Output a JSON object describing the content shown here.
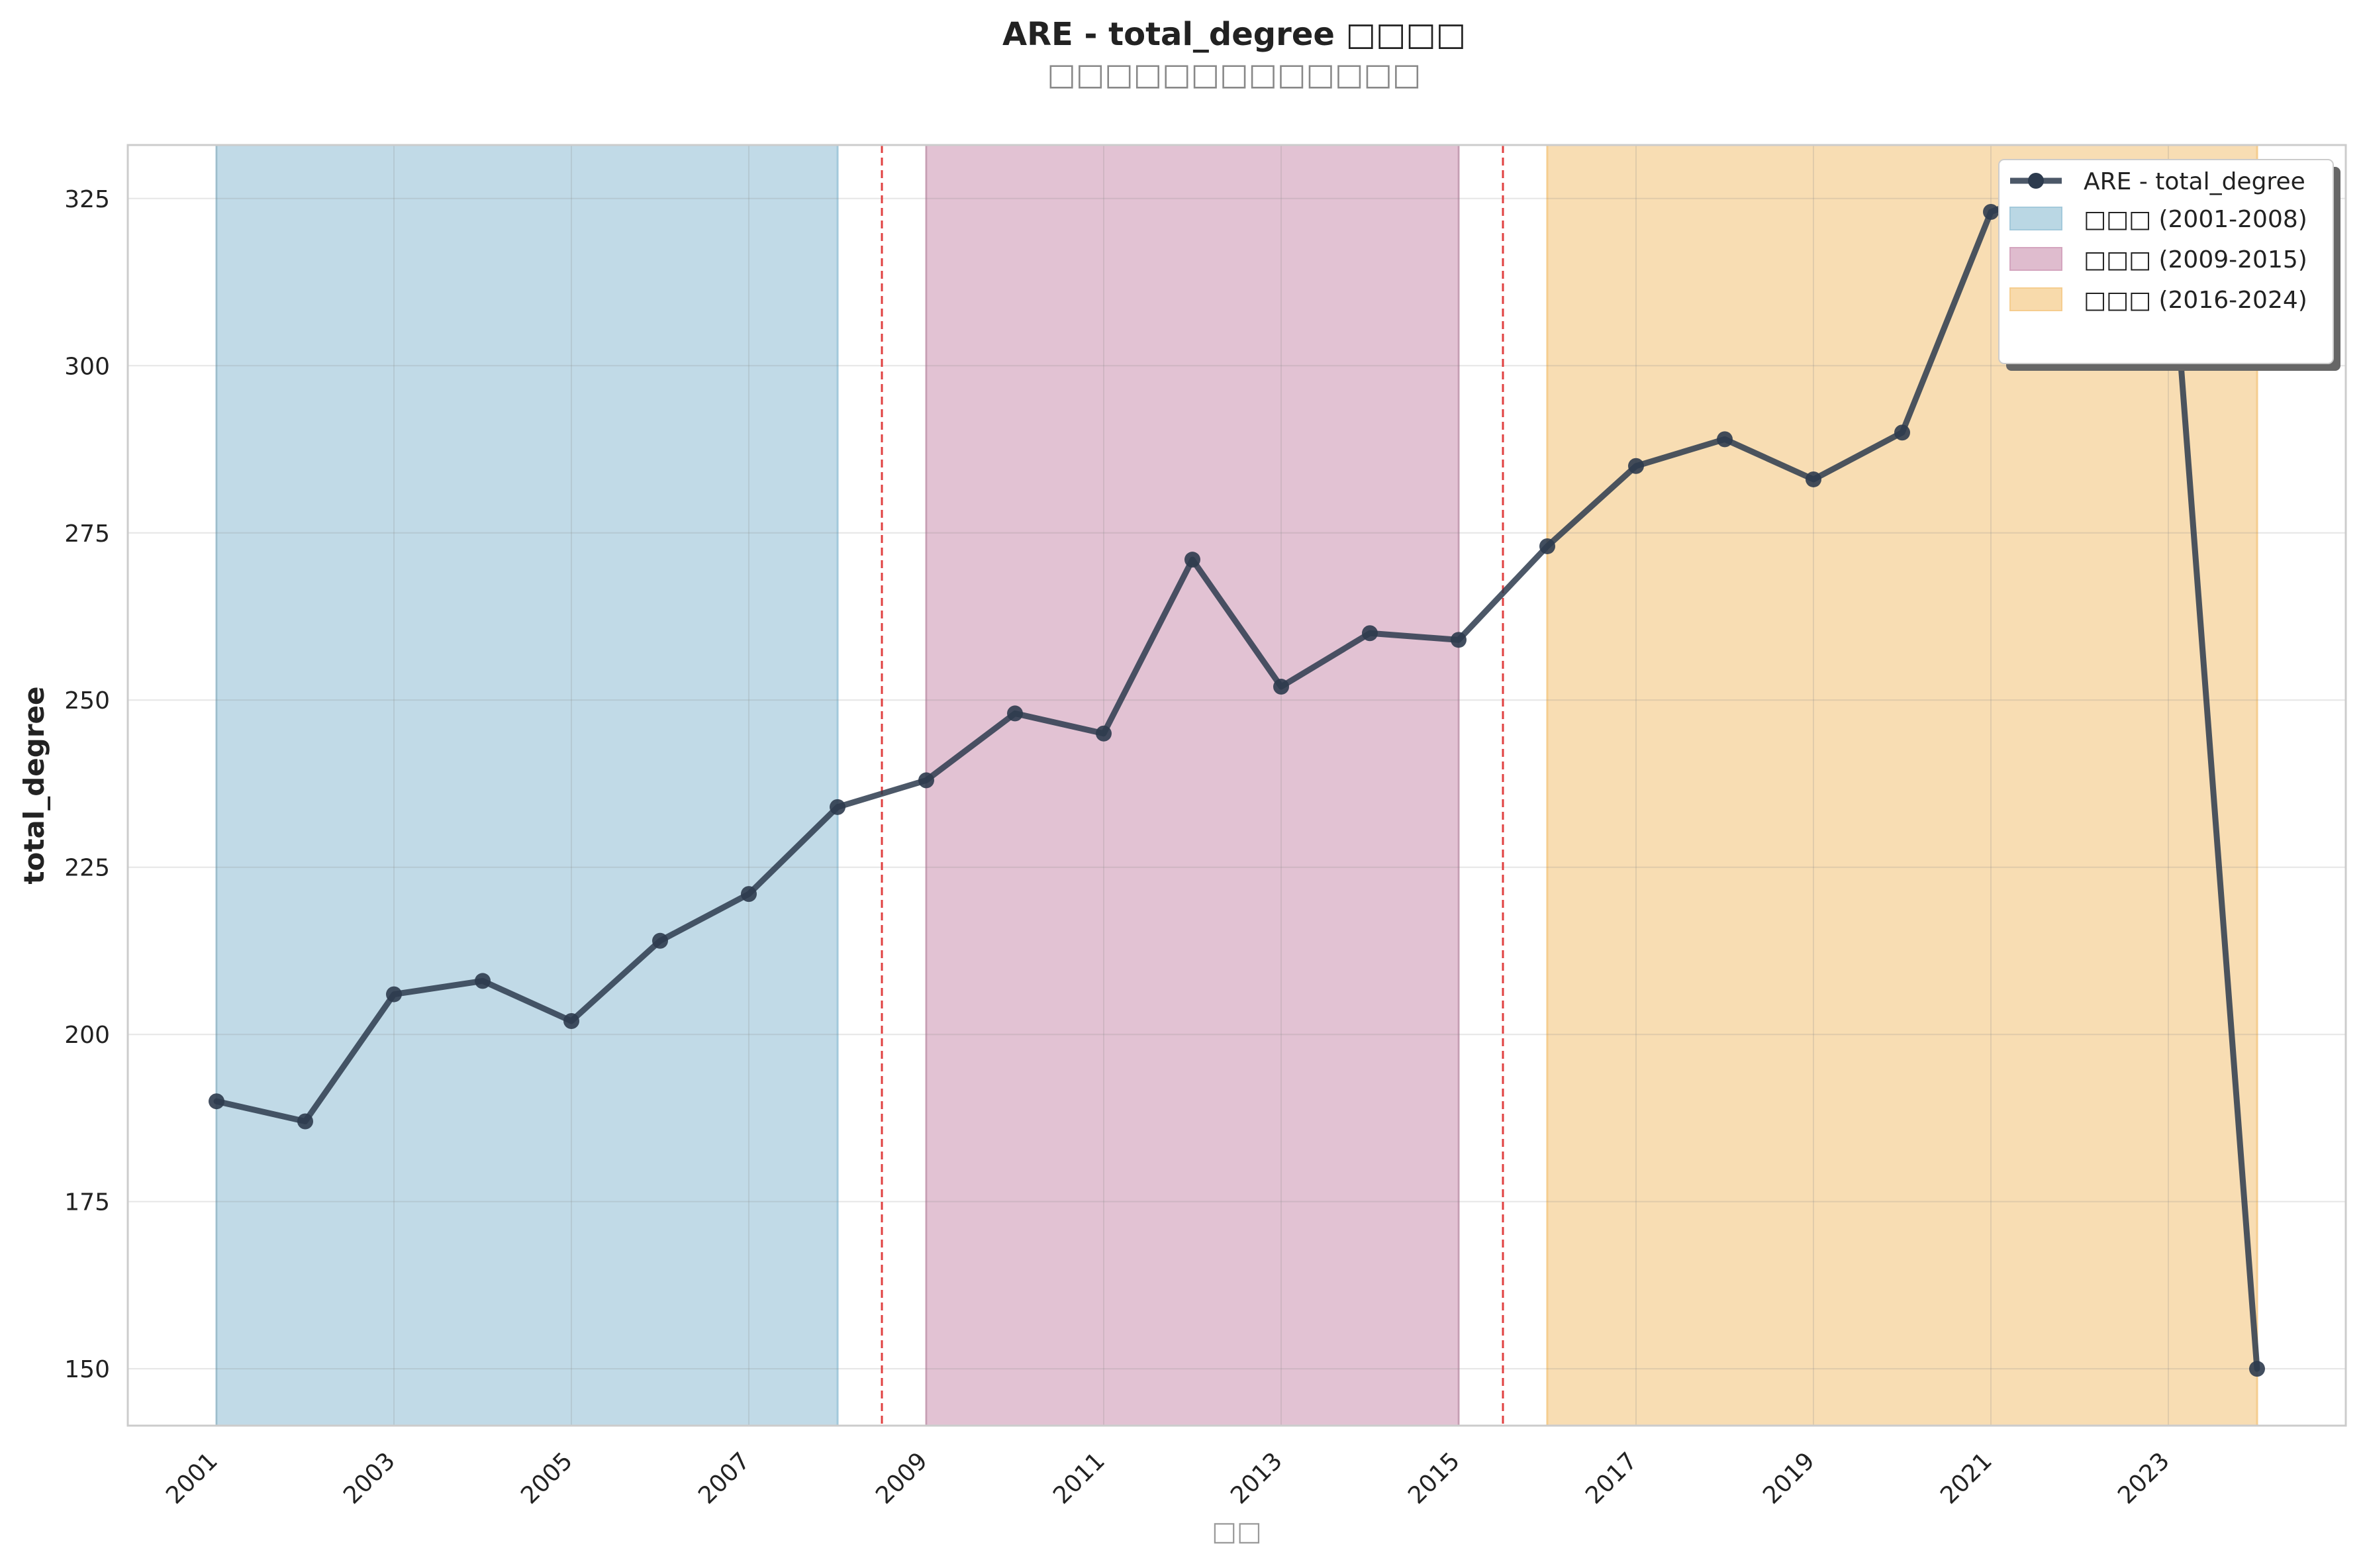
{
  "chart_data": {
    "type": "line",
    "title": "ARE - total_degree □□□□",
    "subtitle": "□□□□□□□□□□□□□",
    "xlabel": "□□",
    "ylabel": "total_degree",
    "xlim": [
      2000.0,
      2025.0
    ],
    "ylim": [
      141.5,
      333.0
    ],
    "x_ticks": [
      2001,
      2003,
      2005,
      2007,
      2009,
      2011,
      2013,
      2015,
      2017,
      2019,
      2021,
      2023
    ],
    "y_ticks": [
      150,
      175,
      200,
      225,
      250,
      275,
      300,
      325
    ],
    "grid": true,
    "legend_position": "top-right",
    "series": [
      {
        "name": "ARE - total_degree",
        "color": "#2d3b4e",
        "x": [
          2001,
          2002,
          2003,
          2004,
          2005,
          2006,
          2007,
          2008,
          2009,
          2010,
          2011,
          2012,
          2013,
          2014,
          2015,
          2016,
          2017,
          2018,
          2019,
          2020,
          2021,
          2022,
          2023,
          2024
        ],
        "values": [
          190,
          187,
          206,
          208,
          202,
          214,
          221,
          234,
          238,
          248,
          245,
          271,
          252,
          260,
          259,
          273,
          285,
          289,
          283,
          290,
          323,
          328,
          325,
          150
        ]
      }
    ],
    "periods": [
      {
        "label": "□□□ (2001-2008)",
        "start": 2001,
        "end": 2008,
        "color": "#a3c9db"
      },
      {
        "label": "□□□ (2009-2015)",
        "start": 2009,
        "end": 2015,
        "color": "#d4a5be"
      },
      {
        "label": "□□□ (2016-2024)",
        "start": 2016,
        "end": 2024,
        "color": "#f5cd8f"
      }
    ],
    "separators": [
      2008.5,
      2015.5
    ],
    "separator_color": "#e04040"
  }
}
